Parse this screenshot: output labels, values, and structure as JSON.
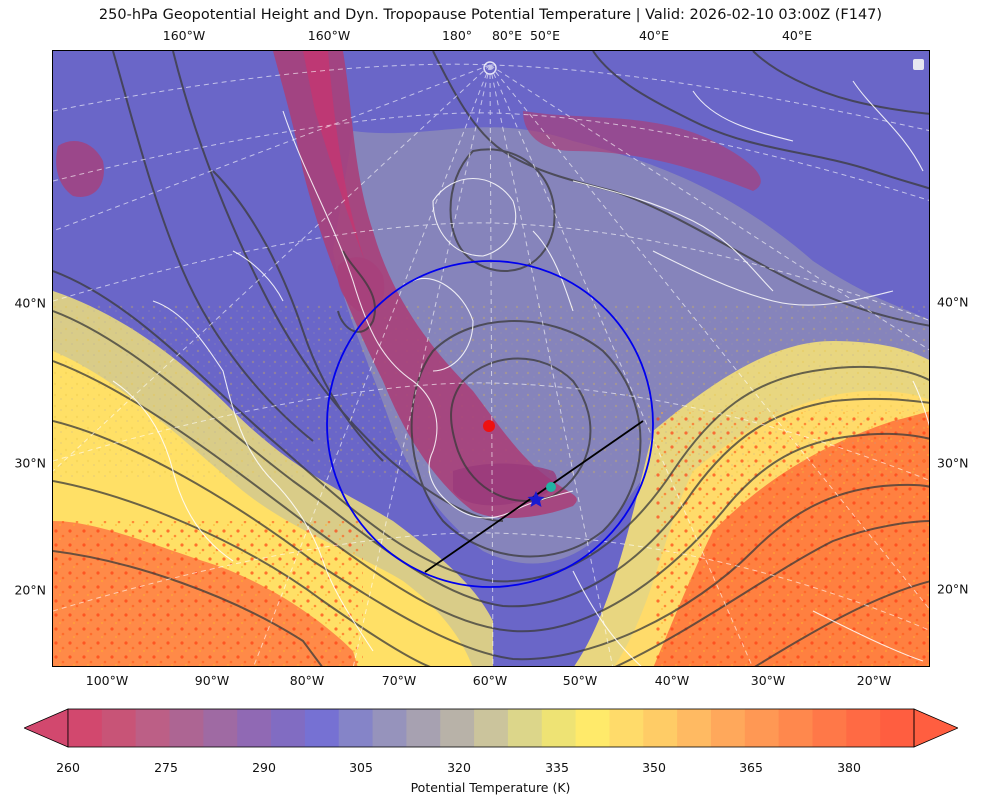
{
  "title": "250-hPa Geopotential Height and Dyn. Tropopause Potential Temperature   |  Valid: 2026-02-10 03:00Z (F147)",
  "top_ticks": [
    "160°W",
    "160°W",
    "180°",
    "80°E",
    "50°E",
    "40°E",
    "40°E"
  ],
  "bottom_ticks": [
    "100°W",
    "90°W",
    "80°W",
    "70°W",
    "60°W",
    "50°W",
    "40°W",
    "30°W",
    "20°W"
  ],
  "left_ticks": [
    "40°N",
    "30°N",
    "20°N"
  ],
  "right_ticks": [
    "40°N",
    "30°N",
    "20°N"
  ],
  "colorbar": {
    "label": "Potential Temperature (K)",
    "ticks": [
      "260",
      "275",
      "290",
      "305",
      "320",
      "335",
      "350",
      "365",
      "380"
    ],
    "colors": [
      "#d2486e",
      "#c85477",
      "#bc5f86",
      "#ad6593",
      "#9f6aa3",
      "#9069b4",
      "#816cc2",
      "#7671d3",
      "#8584c8",
      "#9693bc",
      "#a7a1b1",
      "#b8b2a8",
      "#cbc49c",
      "#dcd68a",
      "#eee374",
      "#ffea6a",
      "#ffdb6a",
      "#ffcc66",
      "#ffba62",
      "#ffa85b",
      "#ff9854",
      "#ff884d",
      "#ff7848",
      "#ff6a44",
      "#ff5e40"
    ]
  },
  "map": {
    "colors": {
      "warm_orange": "#ff8040",
      "warm_yellow": "#ffe066",
      "cool_blue": "#6b63c9",
      "trough_magenta": "#a8407a",
      "contour": "#3a3a3a",
      "coast": "#ffffff",
      "circle": "#0000ee"
    },
    "markers": [
      {
        "name": "low-center",
        "color": "#ee1111",
        "shape": "circle"
      },
      {
        "name": "target",
        "color": "#1a1ad0",
        "shape": "star"
      },
      {
        "name": "secondary",
        "color": "#20b3a3",
        "shape": "circle"
      }
    ]
  }
}
